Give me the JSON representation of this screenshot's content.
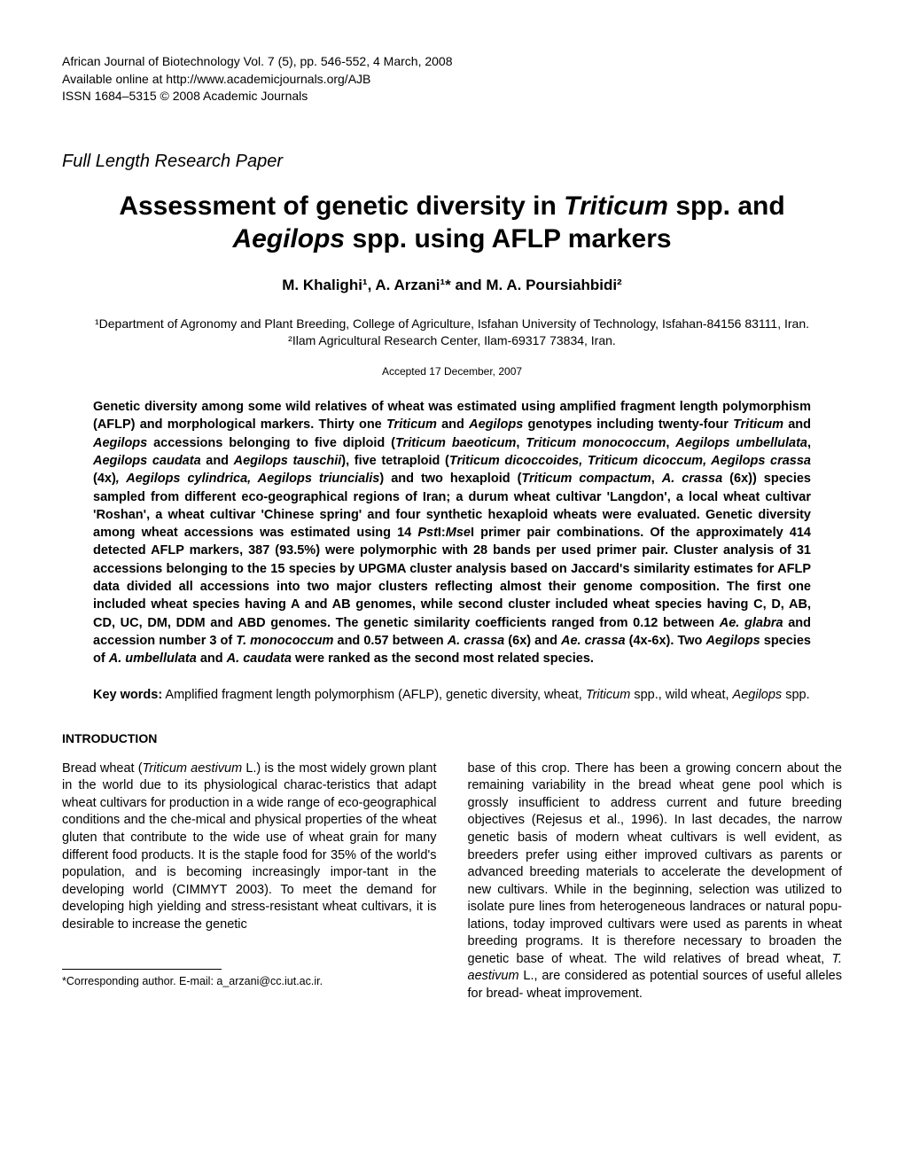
{
  "header": {
    "line1": "African Journal of Biotechnology Vol. 7 (5), pp. 546-552, 4 March, 2008",
    "line2": "Available online at http://www.academicjournals.org/AJB",
    "line3": "ISSN 1684–5315 © 2008 Academic Journals"
  },
  "paper_type": "Full Length Research Paper",
  "title_part1": "Assessment of genetic diversity in ",
  "title_italic1": "Triticum",
  "title_part2": " spp. and ",
  "title_italic2": "Aegilops",
  "title_part3": " spp. using AFLP markers",
  "authors": "M. Khalighi¹, A. Arzani¹* and M. A. Poursiahbidi²",
  "affiliation1": "¹Department of Agronomy and Plant Breeding, College of Agriculture, Isfahan University of Technology, Isfahan-84156 83111, Iran.",
  "affiliation2": "²Ilam Agricultural Research Center, Ilam-69317 73834, Iran.",
  "accepted": "Accepted 17 December, 2007",
  "abstract": {
    "p1": "Genetic diversity among some wild relatives of wheat was estimated using amplified fragment length polymorphism (AFLP) and morphological markers. Thirty one ",
    "i1": "Triticum",
    "p2": " and ",
    "i2": "Aegilops",
    "p3": " genotypes including twenty-four ",
    "i3": "Triticum",
    "p4": " and ",
    "i4": "Aegilops",
    "p5": " accessions belonging to five diploid (",
    "i5": "Triticum baeoticum",
    "p6": ", ",
    "i6": "Triticum monococcum",
    "p7": ", ",
    "i7": "Aegilops umbellulata",
    "p8": ", ",
    "i8": "Aegilops caudata",
    "p9": " and ",
    "i9": "Aegilops tauschii",
    "p10": "), five tetraploid (",
    "i10": "Triticum dicoccoides, Triticum dicoccum, Aegilops crassa",
    "p11": " (4x)",
    "i11": ", Aegilops cylindrica, Aegilops triuncialis",
    "p12": ") and two hexaploid (",
    "i12": "Triticum compactum",
    "p13": ", ",
    "i13": "A. crassa",
    "p14": " (6x)) species sampled from different eco-geographical regions of Iran; a durum wheat cultivar 'Langdon', a local wheat cultivar 'Roshan', a wheat cultivar 'Chinese spring' and four synthetic hexaploid wheats were evaluated. Genetic diversity among wheat accessions was estimated using 14 ",
    "i14": "Pst",
    "p15": "I:",
    "i15": "Mse",
    "p16": "I primer pair combinations. Of the approximately 414 detected AFLP markers, 387 (93.5%) were polymorphic with 28 bands per used primer pair. Cluster analysis of 31 accessions belonging to the 15 species by UPGMA cluster analysis based on Jaccard's similarity estimates for AFLP data divided all accessions into two major clusters reflecting almost their genome composition. The first one included wheat species having A and AB genomes, while second cluster included wheat species having C, D, AB, CD, UC, DM, DDM and ABD genomes. The genetic similarity coefficients ranged from 0.12 between ",
    "i16": "Ae. glabra",
    "p17": " and accession number 3 of ",
    "i17": "T. monococcum",
    "p18": " and 0.57 between ",
    "i18": "A. crassa",
    "p19": " (6x) and ",
    "i19": "Ae. crassa",
    "p20": " (4x-6x). Two ",
    "i20": "Aegilops",
    "p21": " species of ",
    "i21": "A. umbellulata",
    "p22": " and ",
    "i22": "A. caudata",
    "p23": " were ranked as the second most related species."
  },
  "keywords": {
    "label": "Key words:",
    "p1": " Amplified fragment length polymorphism (AFLP), genetic diversity, wheat, ",
    "i1": "Triticum",
    "p2": " spp., wild wheat, ",
    "i2": "Aegilops",
    "p3": " spp."
  },
  "section_heading": "INTRODUCTION",
  "intro": {
    "col1_p1": "Bread wheat (",
    "col1_i1": "Triticum aestivum",
    "col1_p2": " L.) is the most widely grown plant in the world due to its physiological charac-teristics that adapt wheat cultivars for production in a wide range of eco-geographical conditions and the che-mical and physical properties of the wheat gluten that contribute to the wide use of wheat grain for many different food products. It is the staple food for 35% of the world's population, and is becoming increasingly impor-tant in the developing world (CIMMYT 2003). To meet the demand for developing high yielding and stress-resistant wheat cultivars, it is desirable to increase the genetic",
    "col2_p1": "base of this crop. There has been a growing concern about the remaining variability in the bread wheat gene pool which is grossly insufficient to address current and future breeding objectives (Rejesus et al., 1996). In last decades, the narrow genetic basis of modern wheat cultivars is well evident, as breeders prefer using either improved cultivars as parents or advanced breeding materials to accelerate the development of new cultivars. While in the beginning, selection was utilized to isolate pure lines from heterogeneous landraces or natural popu-lations, today improved cultivars were used as parents in wheat breeding programs. It is therefore necessary to broaden the genetic base of wheat. The wild relatives of bread wheat, ",
    "col2_i1": "T. aestivum",
    "col2_p2": " L., are considered as potential sources of useful alleles  for  bread- wheat  improvement."
  },
  "footnote": "*Corresponding author. E-mail: a_arzani@cc.iut.ac.ir."
}
